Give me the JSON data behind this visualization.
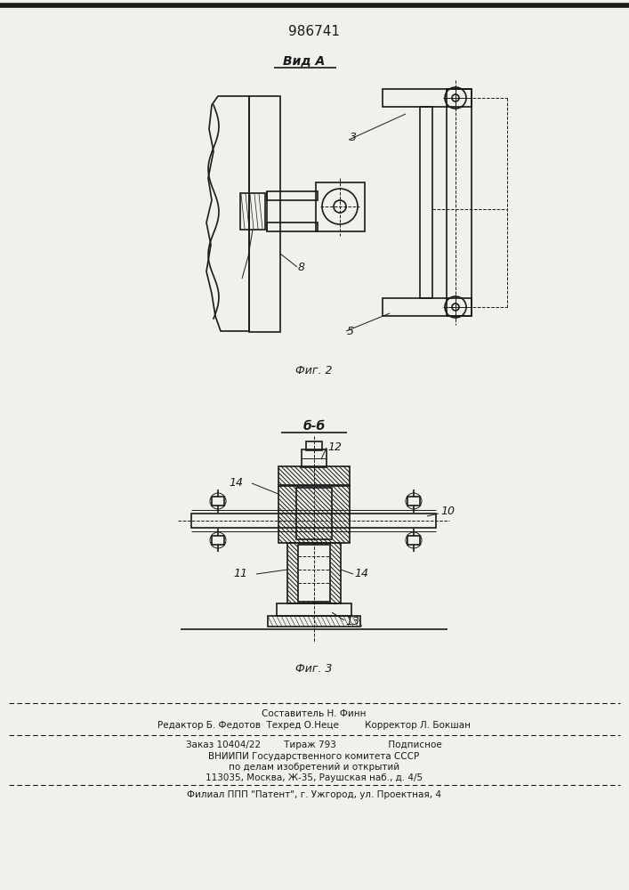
{
  "patent_number": "986741",
  "background_color": "#f2f0eb",
  "line_color": "#1a1a1a",
  "fig_width": 7.07,
  "fig_height": 10.0,
  "view_a_label": "Вид А",
  "fig2_label": "Фиг. 2",
  "fig3_label": "Фиг. 3",
  "section_bb_label": "б-б",
  "label_3": "3",
  "label_5": "5",
  "label_8": "8",
  "label_11": "11",
  "label_12": "12",
  "label_13": "13",
  "label_14_left": "14",
  "label_14_right": "14",
  "label_10": "10",
  "footer_line1": "Составитель Н. Финн",
  "footer_line2": "Редактор Б. Федотов  Техред О.Неце         Корректор Л. Бокшан",
  "footer_line3": "Заказ 10404/22        Тираж 793                  Подписное",
  "footer_line4": "ВНИИПИ Государственного комитета СССР",
  "footer_line5": "по делам изобретений и открытий",
  "footer_line6": "113035, Москва, Ж-35, Раушская наб., д. 4/5",
  "footer_line7": "Филиал ППП \"Патент\", г. Ужгород, ул. Проектная, 4"
}
